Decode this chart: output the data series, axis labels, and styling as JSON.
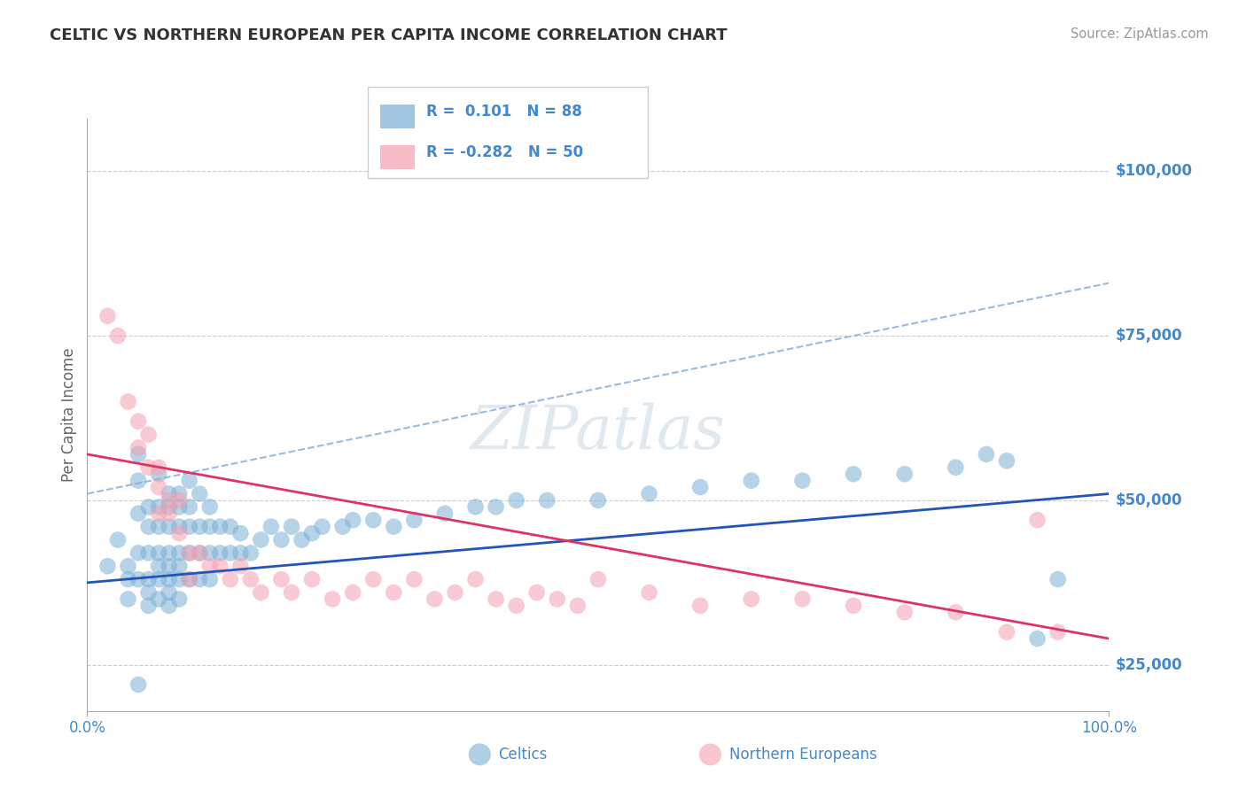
{
  "title": "CELTIC VS NORTHERN EUROPEAN PER CAPITA INCOME CORRELATION CHART",
  "source_text": "Source: ZipAtlas.com",
  "ylabel": "Per Capita Income",
  "x_min": 0.0,
  "x_max": 1.0,
  "y_min": 18000,
  "y_max": 108000,
  "yticks": [
    25000,
    50000,
    75000,
    100000
  ],
  "ytick_labels": [
    "$25,000",
    "$50,000",
    "$75,000",
    "$100,000"
  ],
  "xticks": [
    0.0,
    1.0
  ],
  "xtick_labels": [
    "0.0%",
    "100.0%"
  ],
  "legend_r_celtic": "0.101",
  "legend_n_celtic": "88",
  "legend_r_northern": "-0.282",
  "legend_n_northern": "50",
  "celtic_color": "#7bafd4",
  "northern_color": "#f4a0b0",
  "blue_line_color": "#2255bb",
  "pink_line_color": "#dd3366",
  "dashed_line_color": "#99bbdd",
  "grid_color": "#cccccc",
  "title_color": "#333333",
  "axis_label_color": "#666666",
  "ytick_color": "#4488cc",
  "source_color": "#999999",
  "watermark_color": "#e0e8f0",
  "background_color": "#ffffff",
  "celtics_x": [
    0.02,
    0.03,
    0.04,
    0.04,
    0.04,
    0.05,
    0.05,
    0.05,
    0.05,
    0.05,
    0.06,
    0.06,
    0.06,
    0.06,
    0.06,
    0.06,
    0.07,
    0.07,
    0.07,
    0.07,
    0.07,
    0.07,
    0.07,
    0.08,
    0.08,
    0.08,
    0.08,
    0.08,
    0.08,
    0.08,
    0.08,
    0.09,
    0.09,
    0.09,
    0.09,
    0.09,
    0.09,
    0.09,
    0.1,
    0.1,
    0.1,
    0.1,
    0.1,
    0.11,
    0.11,
    0.11,
    0.11,
    0.12,
    0.12,
    0.12,
    0.12,
    0.13,
    0.13,
    0.14,
    0.14,
    0.15,
    0.15,
    0.16,
    0.17,
    0.18,
    0.19,
    0.2,
    0.21,
    0.22,
    0.23,
    0.25,
    0.26,
    0.28,
    0.3,
    0.32,
    0.35,
    0.38,
    0.4,
    0.42,
    0.45,
    0.5,
    0.55,
    0.6,
    0.65,
    0.7,
    0.75,
    0.8,
    0.85,
    0.88,
    0.9,
    0.93,
    0.95,
    0.05
  ],
  "celtics_y": [
    40000,
    44000,
    35000,
    40000,
    38000,
    57000,
    48000,
    53000,
    42000,
    38000,
    49000,
    46000,
    42000,
    38000,
    36000,
    34000,
    54000,
    49000,
    46000,
    42000,
    40000,
    38000,
    35000,
    51000,
    49000,
    46000,
    42000,
    40000,
    38000,
    36000,
    34000,
    51000,
    49000,
    46000,
    42000,
    40000,
    38000,
    35000,
    53000,
    49000,
    46000,
    42000,
    38000,
    51000,
    46000,
    42000,
    38000,
    49000,
    46000,
    42000,
    38000,
    46000,
    42000,
    46000,
    42000,
    45000,
    42000,
    42000,
    44000,
    46000,
    44000,
    46000,
    44000,
    45000,
    46000,
    46000,
    47000,
    47000,
    46000,
    47000,
    48000,
    49000,
    49000,
    50000,
    50000,
    50000,
    51000,
    52000,
    53000,
    53000,
    54000,
    54000,
    55000,
    57000,
    56000,
    29000,
    38000,
    22000
  ],
  "northern_x": [
    0.02,
    0.03,
    0.04,
    0.05,
    0.05,
    0.06,
    0.06,
    0.07,
    0.07,
    0.07,
    0.08,
    0.08,
    0.09,
    0.09,
    0.1,
    0.1,
    0.11,
    0.12,
    0.13,
    0.14,
    0.15,
    0.16,
    0.17,
    0.19,
    0.2,
    0.22,
    0.24,
    0.26,
    0.28,
    0.3,
    0.32,
    0.34,
    0.36,
    0.38,
    0.4,
    0.42,
    0.44,
    0.46,
    0.48,
    0.5,
    0.55,
    0.6,
    0.65,
    0.7,
    0.75,
    0.8,
    0.85,
    0.9,
    0.93,
    0.95
  ],
  "northern_y": [
    78000,
    75000,
    65000,
    62000,
    58000,
    55000,
    60000,
    55000,
    52000,
    48000,
    50000,
    48000,
    50000,
    45000,
    42000,
    38000,
    42000,
    40000,
    40000,
    38000,
    40000,
    38000,
    36000,
    38000,
    36000,
    38000,
    35000,
    36000,
    38000,
    36000,
    38000,
    35000,
    36000,
    38000,
    35000,
    34000,
    36000,
    35000,
    34000,
    38000,
    36000,
    34000,
    35000,
    35000,
    34000,
    33000,
    33000,
    30000,
    47000,
    30000
  ],
  "blue_line": [
    0.0,
    37500,
    1.0,
    51000
  ],
  "pink_line": [
    0.0,
    57000,
    1.0,
    29000
  ],
  "dashed_line": [
    0.0,
    51000,
    1.0,
    83000
  ]
}
